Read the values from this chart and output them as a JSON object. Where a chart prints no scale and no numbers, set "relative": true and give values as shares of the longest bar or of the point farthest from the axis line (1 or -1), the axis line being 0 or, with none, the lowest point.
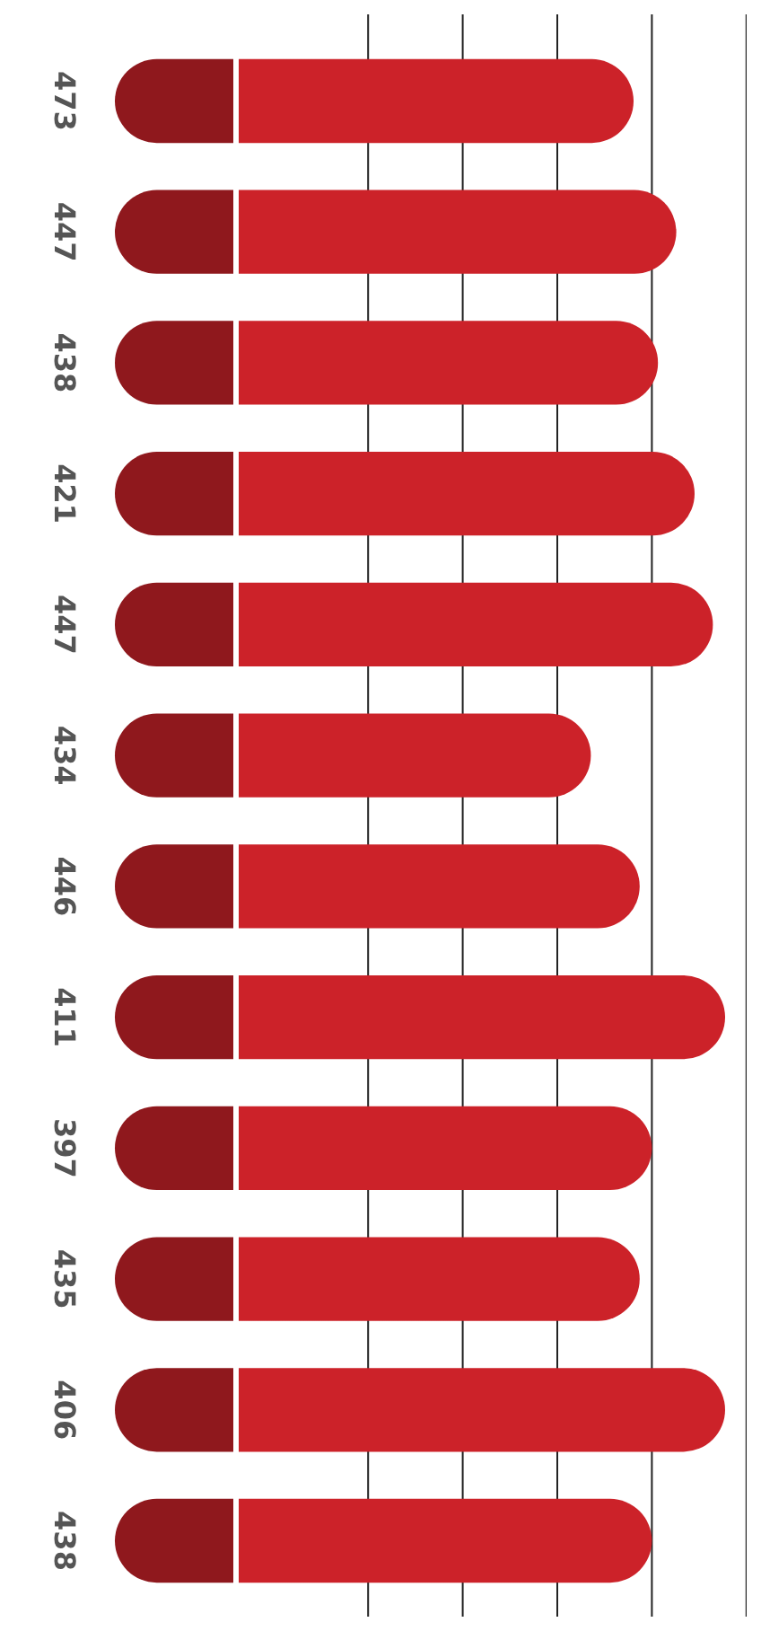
{
  "chart_data": {
    "type": "bar",
    "orientation": "horizontal",
    "relative": true,
    "grid": true,
    "color": "#cc2229",
    "categories": [
      "473",
      "447",
      "438",
      "421",
      "447",
      "434",
      "446",
      "411",
      "397",
      "435",
      "406",
      "438"
    ],
    "values": [
      0.85,
      0.92,
      0.89,
      0.95,
      0.98,
      0.78,
      0.86,
      1,
      0.88,
      0.86,
      1,
      0.88
    ]
  }
}
